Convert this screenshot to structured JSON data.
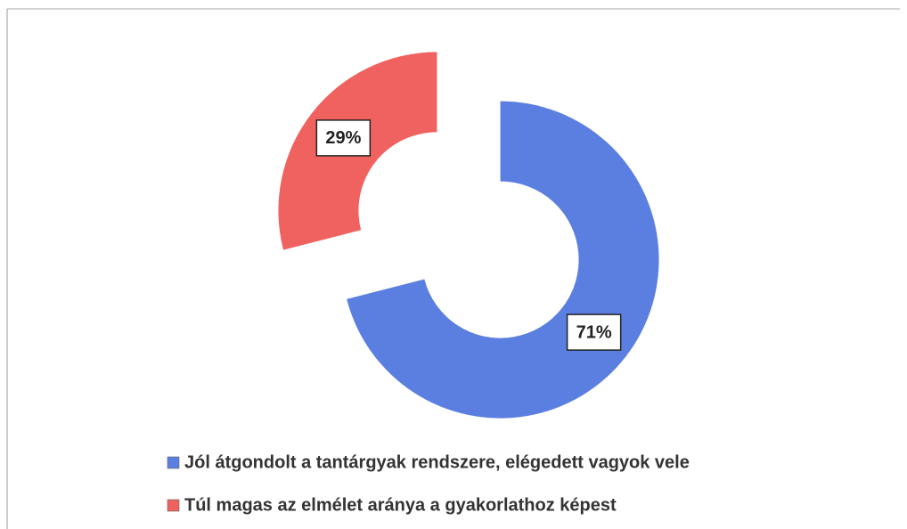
{
  "chart_data": {
    "type": "donut",
    "categories": [
      "Jól átgondolt a tantárgyak rendszere, elégedett vagyok vele",
      "Túl magas az elmélet aránya a gyakorlathoz képest"
    ],
    "values": [
      71,
      29
    ],
    "value_labels": [
      "71%",
      "29%"
    ],
    "colors": [
      "#5b7fe0",
      "#f0625f"
    ],
    "exploded": true,
    "legend": "bottom"
  }
}
